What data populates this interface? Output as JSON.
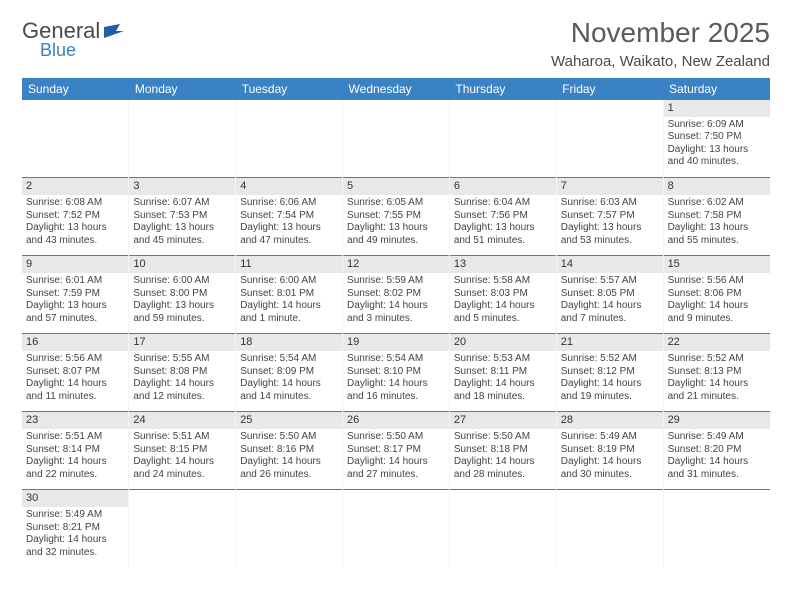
{
  "colors": {
    "header_blue": "#3b82c4",
    "daynum_bg": "#e8e8e8",
    "title_color": "#5a5a5a",
    "text_color": "#333333",
    "background": "#ffffff"
  },
  "logo": {
    "line1": "General",
    "line2": "Blue",
    "flag_color": "#1e5fa8"
  },
  "title": "November 2025",
  "location": "Waharoa, Waikato, New Zealand",
  "weekday_headers": [
    "Sunday",
    "Monday",
    "Tuesday",
    "Wednesday",
    "Thursday",
    "Friday",
    "Saturday"
  ],
  "weeks": [
    [
      null,
      null,
      null,
      null,
      null,
      null,
      {
        "n": "1",
        "sunrise": "Sunrise: 6:09 AM",
        "sunset": "Sunset: 7:50 PM",
        "daylight": "Daylight: 13 hours and 40 minutes."
      }
    ],
    [
      {
        "n": "2",
        "sunrise": "Sunrise: 6:08 AM",
        "sunset": "Sunset: 7:52 PM",
        "daylight": "Daylight: 13 hours and 43 minutes."
      },
      {
        "n": "3",
        "sunrise": "Sunrise: 6:07 AM",
        "sunset": "Sunset: 7:53 PM",
        "daylight": "Daylight: 13 hours and 45 minutes."
      },
      {
        "n": "4",
        "sunrise": "Sunrise: 6:06 AM",
        "sunset": "Sunset: 7:54 PM",
        "daylight": "Daylight: 13 hours and 47 minutes."
      },
      {
        "n": "5",
        "sunrise": "Sunrise: 6:05 AM",
        "sunset": "Sunset: 7:55 PM",
        "daylight": "Daylight: 13 hours and 49 minutes."
      },
      {
        "n": "6",
        "sunrise": "Sunrise: 6:04 AM",
        "sunset": "Sunset: 7:56 PM",
        "daylight": "Daylight: 13 hours and 51 minutes."
      },
      {
        "n": "7",
        "sunrise": "Sunrise: 6:03 AM",
        "sunset": "Sunset: 7:57 PM",
        "daylight": "Daylight: 13 hours and 53 minutes."
      },
      {
        "n": "8",
        "sunrise": "Sunrise: 6:02 AM",
        "sunset": "Sunset: 7:58 PM",
        "daylight": "Daylight: 13 hours and 55 minutes."
      }
    ],
    [
      {
        "n": "9",
        "sunrise": "Sunrise: 6:01 AM",
        "sunset": "Sunset: 7:59 PM",
        "daylight": "Daylight: 13 hours and 57 minutes."
      },
      {
        "n": "10",
        "sunrise": "Sunrise: 6:00 AM",
        "sunset": "Sunset: 8:00 PM",
        "daylight": "Daylight: 13 hours and 59 minutes."
      },
      {
        "n": "11",
        "sunrise": "Sunrise: 6:00 AM",
        "sunset": "Sunset: 8:01 PM",
        "daylight": "Daylight: 14 hours and 1 minute."
      },
      {
        "n": "12",
        "sunrise": "Sunrise: 5:59 AM",
        "sunset": "Sunset: 8:02 PM",
        "daylight": "Daylight: 14 hours and 3 minutes."
      },
      {
        "n": "13",
        "sunrise": "Sunrise: 5:58 AM",
        "sunset": "Sunset: 8:03 PM",
        "daylight": "Daylight: 14 hours and 5 minutes."
      },
      {
        "n": "14",
        "sunrise": "Sunrise: 5:57 AM",
        "sunset": "Sunset: 8:05 PM",
        "daylight": "Daylight: 14 hours and 7 minutes."
      },
      {
        "n": "15",
        "sunrise": "Sunrise: 5:56 AM",
        "sunset": "Sunset: 8:06 PM",
        "daylight": "Daylight: 14 hours and 9 minutes."
      }
    ],
    [
      {
        "n": "16",
        "sunrise": "Sunrise: 5:56 AM",
        "sunset": "Sunset: 8:07 PM",
        "daylight": "Daylight: 14 hours and 11 minutes."
      },
      {
        "n": "17",
        "sunrise": "Sunrise: 5:55 AM",
        "sunset": "Sunset: 8:08 PM",
        "daylight": "Daylight: 14 hours and 12 minutes."
      },
      {
        "n": "18",
        "sunrise": "Sunrise: 5:54 AM",
        "sunset": "Sunset: 8:09 PM",
        "daylight": "Daylight: 14 hours and 14 minutes."
      },
      {
        "n": "19",
        "sunrise": "Sunrise: 5:54 AM",
        "sunset": "Sunset: 8:10 PM",
        "daylight": "Daylight: 14 hours and 16 minutes."
      },
      {
        "n": "20",
        "sunrise": "Sunrise: 5:53 AM",
        "sunset": "Sunset: 8:11 PM",
        "daylight": "Daylight: 14 hours and 18 minutes."
      },
      {
        "n": "21",
        "sunrise": "Sunrise: 5:52 AM",
        "sunset": "Sunset: 8:12 PM",
        "daylight": "Daylight: 14 hours and 19 minutes."
      },
      {
        "n": "22",
        "sunrise": "Sunrise: 5:52 AM",
        "sunset": "Sunset: 8:13 PM",
        "daylight": "Daylight: 14 hours and 21 minutes."
      }
    ],
    [
      {
        "n": "23",
        "sunrise": "Sunrise: 5:51 AM",
        "sunset": "Sunset: 8:14 PM",
        "daylight": "Daylight: 14 hours and 22 minutes."
      },
      {
        "n": "24",
        "sunrise": "Sunrise: 5:51 AM",
        "sunset": "Sunset: 8:15 PM",
        "daylight": "Daylight: 14 hours and 24 minutes."
      },
      {
        "n": "25",
        "sunrise": "Sunrise: 5:50 AM",
        "sunset": "Sunset: 8:16 PM",
        "daylight": "Daylight: 14 hours and 26 minutes."
      },
      {
        "n": "26",
        "sunrise": "Sunrise: 5:50 AM",
        "sunset": "Sunset: 8:17 PM",
        "daylight": "Daylight: 14 hours and 27 minutes."
      },
      {
        "n": "27",
        "sunrise": "Sunrise: 5:50 AM",
        "sunset": "Sunset: 8:18 PM",
        "daylight": "Daylight: 14 hours and 28 minutes."
      },
      {
        "n": "28",
        "sunrise": "Sunrise: 5:49 AM",
        "sunset": "Sunset: 8:19 PM",
        "daylight": "Daylight: 14 hours and 30 minutes."
      },
      {
        "n": "29",
        "sunrise": "Sunrise: 5:49 AM",
        "sunset": "Sunset: 8:20 PM",
        "daylight": "Daylight: 14 hours and 31 minutes."
      }
    ],
    [
      {
        "n": "30",
        "sunrise": "Sunrise: 5:49 AM",
        "sunset": "Sunset: 8:21 PM",
        "daylight": "Daylight: 14 hours and 32 minutes."
      },
      null,
      null,
      null,
      null,
      null,
      null
    ]
  ]
}
